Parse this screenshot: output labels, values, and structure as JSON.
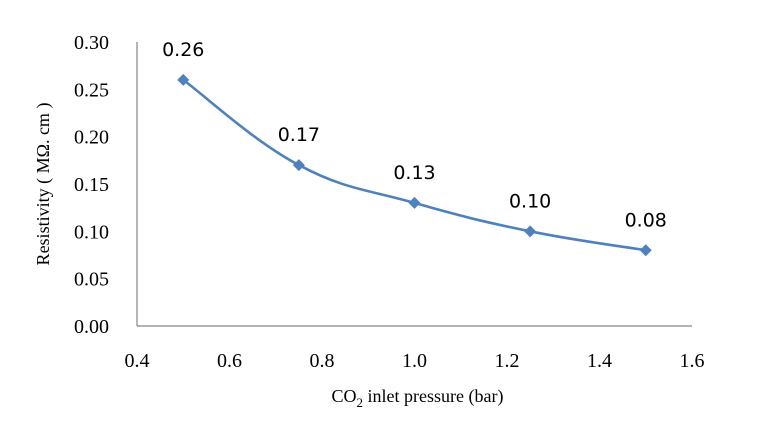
{
  "chart_data": {
    "type": "line",
    "title": "",
    "xlabel": {
      "prefix": "CO",
      "subscript": "2",
      "suffix": " inlet pressure (bar)"
    },
    "ylabel": "Resistivity ( MΩ. cm )",
    "x": [
      0.5,
      0.75,
      1.0,
      1.25,
      1.5
    ],
    "series": [
      {
        "values": [
          0.26,
          0.17,
          0.13,
          0.1,
          0.08
        ],
        "data_labels": [
          "0.26",
          "0.17",
          "0.13",
          "0.10",
          "0.08"
        ],
        "color": "#4F81BD",
        "marker": "diamond",
        "smooth": true
      }
    ],
    "xlim": [
      0.4,
      1.6
    ],
    "ylim": [
      0.0,
      0.3
    ],
    "x_ticks": [
      "0.4",
      "0.6",
      "0.8",
      "1.0",
      "1.2",
      "1.4",
      "1.6"
    ],
    "y_ticks": [
      "0.00",
      "0.05",
      "0.10",
      "0.15",
      "0.20",
      "0.25",
      "0.30"
    ],
    "grid": false,
    "legend": "none"
  }
}
